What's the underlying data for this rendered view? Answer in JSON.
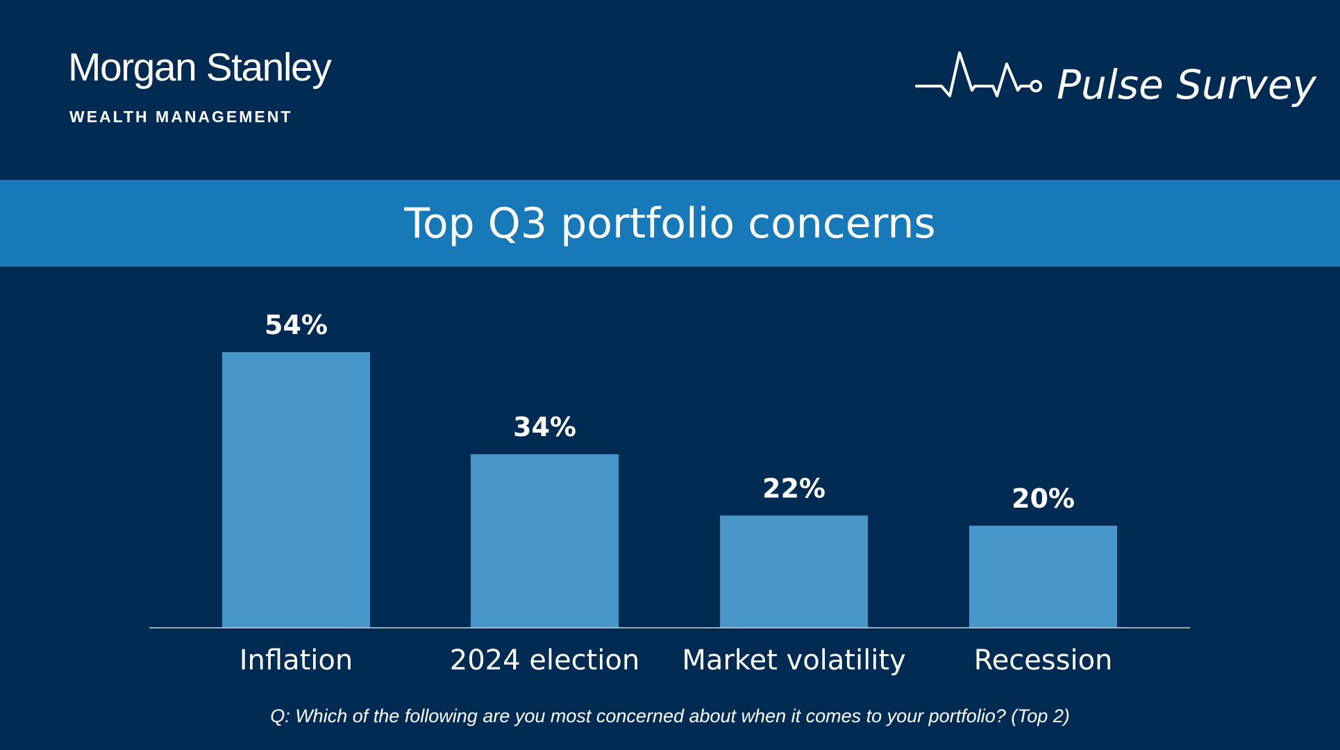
{
  "header": {
    "brand": "Morgan Stanley",
    "brand_sub": "WEALTH MANAGEMENT",
    "survey_title": "Pulse Survey",
    "survey_icon": "heartbeat-pulse-icon"
  },
  "colors": {
    "background": "#022b53",
    "banner": "#1879b9",
    "bar": "#4895c8",
    "text": "#ffffff"
  },
  "chart_data": {
    "type": "bar",
    "title": "Top Q3 portfolio concerns",
    "categories": [
      "Inflation",
      "2024 election",
      "Market volatility",
      "Recession"
    ],
    "values": [
      54,
      34,
      22,
      20
    ],
    "data_labels": [
      "54%",
      "34%",
      "22%",
      "20%"
    ],
    "unit": "%",
    "ylim": [
      0,
      60
    ],
    "grid": false,
    "legend": "none",
    "footnote": "Q: Which of the following are you most concerned about when it comes to your portfolio? (Top 2)"
  }
}
